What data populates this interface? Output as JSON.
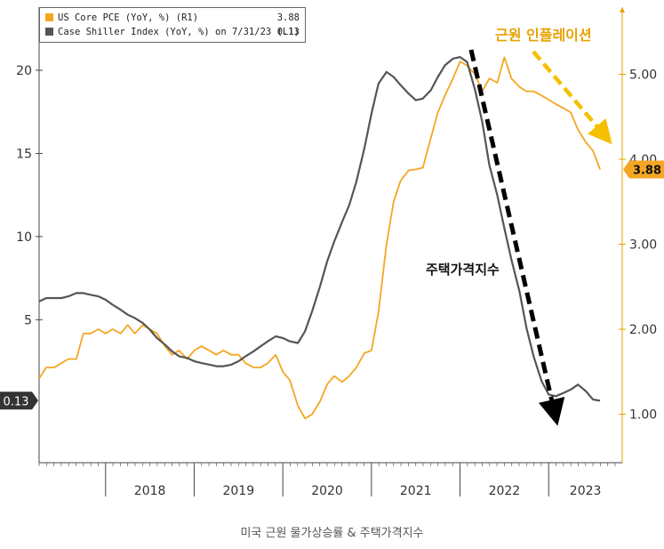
{
  "chart_data": {
    "type": "line",
    "caption": "미국 근원 물가상승률 & 주택가격지수",
    "legend": {
      "placement": "top-left",
      "entries": [
        {
          "label": "US Core PCE (YoY, %) (R1)",
          "value": "3.88",
          "color": "#f5a623"
        },
        {
          "label": "Case Shiller Index (YoY, %) on 7/31/23 (L1)",
          "value": "0.13",
          "color": "#555555"
        }
      ]
    },
    "axes": {
      "left": {
        "ticks": [
          "5",
          "10",
          "15",
          "20"
        ],
        "tick_values": [
          5,
          10,
          15,
          20
        ],
        "ylim": [
          -3.6,
          23.8
        ]
      },
      "right": {
        "ticks": [
          "1.00",
          "2.00",
          "3.00",
          "4.00",
          "5.00"
        ],
        "tick_values": [
          1,
          2,
          3,
          4,
          5
        ],
        "ylim": [
          0.43,
          5.79
        ]
      },
      "x": {
        "labels": [
          "2018",
          "2019",
          "2020",
          "2021",
          "2022",
          "2023"
        ],
        "xlim": [
          2017.25,
          2023.83
        ]
      }
    },
    "last_value_labels": {
      "left": "0.13",
      "right": "3.88"
    },
    "annotations": [
      {
        "text": "근원 인플레이션",
        "color": "#e8a000"
      },
      {
        "text": "주택가격지수",
        "color": "#111111"
      }
    ],
    "series": [
      {
        "name": "US Core PCE (YoY, %)",
        "axis": "right",
        "color": "#f5a623",
        "x": [
          2017.25,
          2017.33,
          2017.42,
          2017.5,
          2017.58,
          2017.67,
          2017.75,
          2017.83,
          2017.92,
          2018.0,
          2018.08,
          2018.17,
          2018.25,
          2018.33,
          2018.42,
          2018.5,
          2018.58,
          2018.67,
          2018.75,
          2018.83,
          2018.92,
          2019.0,
          2019.08,
          2019.17,
          2019.25,
          2019.33,
          2019.42,
          2019.5,
          2019.58,
          2019.67,
          2019.75,
          2019.83,
          2019.92,
          2020.0,
          2020.08,
          2020.17,
          2020.25,
          2020.33,
          2020.42,
          2020.5,
          2020.58,
          2020.67,
          2020.75,
          2020.83,
          2020.92,
          2021.0,
          2021.08,
          2021.17,
          2021.25,
          2021.33,
          2021.42,
          2021.5,
          2021.58,
          2021.67,
          2021.75,
          2021.83,
          2021.92,
          2022.0,
          2022.08,
          2022.17,
          2022.25,
          2022.33,
          2022.42,
          2022.5,
          2022.58,
          2022.67,
          2022.75,
          2022.83,
          2022.92,
          2023.0,
          2023.08,
          2023.17,
          2023.25,
          2023.33,
          2023.42,
          2023.5,
          2023.58
        ],
        "y": [
          1.42,
          1.55,
          1.55,
          1.6,
          1.65,
          1.65,
          1.95,
          1.95,
          2.0,
          1.95,
          2.0,
          1.95,
          2.05,
          1.95,
          2.05,
          2.0,
          1.95,
          1.8,
          1.7,
          1.75,
          1.65,
          1.75,
          1.8,
          1.75,
          1.7,
          1.75,
          1.7,
          1.7,
          1.6,
          1.55,
          1.55,
          1.6,
          1.7,
          1.5,
          1.4,
          1.1,
          0.95,
          1.0,
          1.15,
          1.35,
          1.45,
          1.38,
          1.45,
          1.55,
          1.72,
          1.75,
          2.2,
          3.0,
          3.5,
          3.75,
          3.87,
          3.88,
          3.9,
          4.25,
          4.55,
          4.75,
          4.95,
          5.15,
          5.1,
          5.0,
          4.8,
          4.95,
          4.9,
          5.2,
          4.95,
          4.85,
          4.8,
          4.8,
          4.75,
          4.7,
          4.65,
          4.6,
          4.55,
          4.35,
          4.2,
          4.1,
          3.88
        ]
      },
      {
        "name": "Case Shiller Index (YoY, %)",
        "axis": "left",
        "color": "#555555",
        "x": [
          2017.25,
          2017.33,
          2017.42,
          2017.5,
          2017.58,
          2017.67,
          2017.75,
          2017.83,
          2017.92,
          2018.0,
          2018.08,
          2018.17,
          2018.25,
          2018.33,
          2018.42,
          2018.5,
          2018.58,
          2018.67,
          2018.75,
          2018.83,
          2018.92,
          2019.0,
          2019.08,
          2019.17,
          2019.25,
          2019.33,
          2019.42,
          2019.5,
          2019.58,
          2019.67,
          2019.75,
          2019.83,
          2019.92,
          2020.0,
          2020.08,
          2020.17,
          2020.25,
          2020.33,
          2020.42,
          2020.5,
          2020.58,
          2020.67,
          2020.75,
          2020.83,
          2020.92,
          2021.0,
          2021.08,
          2021.17,
          2021.25,
          2021.33,
          2021.42,
          2021.5,
          2021.58,
          2021.67,
          2021.75,
          2021.83,
          2021.92,
          2022.0,
          2022.08,
          2022.17,
          2022.25,
          2022.33,
          2022.42,
          2022.5,
          2022.58,
          2022.67,
          2022.75,
          2022.83,
          2022.92,
          2023.0,
          2023.08,
          2023.17,
          2023.25,
          2023.33,
          2023.42,
          2023.5,
          2023.58
        ],
        "y": [
          6.1,
          6.3,
          6.3,
          6.3,
          6.4,
          6.6,
          6.6,
          6.5,
          6.4,
          6.2,
          5.9,
          5.6,
          5.3,
          5.1,
          4.8,
          4.4,
          3.9,
          3.5,
          3.1,
          2.8,
          2.7,
          2.5,
          2.4,
          2.3,
          2.2,
          2.2,
          2.3,
          2.5,
          2.8,
          3.1,
          3.4,
          3.7,
          4.0,
          3.9,
          3.7,
          3.6,
          4.3,
          5.5,
          7.0,
          8.5,
          9.7,
          10.9,
          11.9,
          13.3,
          15.3,
          17.4,
          19.2,
          19.9,
          19.6,
          19.1,
          18.6,
          18.2,
          18.3,
          18.8,
          19.6,
          20.3,
          20.7,
          20.8,
          20.5,
          18.8,
          16.9,
          14.3,
          12.5,
          10.5,
          8.6,
          6.7,
          4.5,
          2.8,
          1.3,
          0.5,
          0.4,
          0.6,
          0.8,
          1.1,
          0.7,
          0.2,
          0.13
        ]
      }
    ]
  }
}
